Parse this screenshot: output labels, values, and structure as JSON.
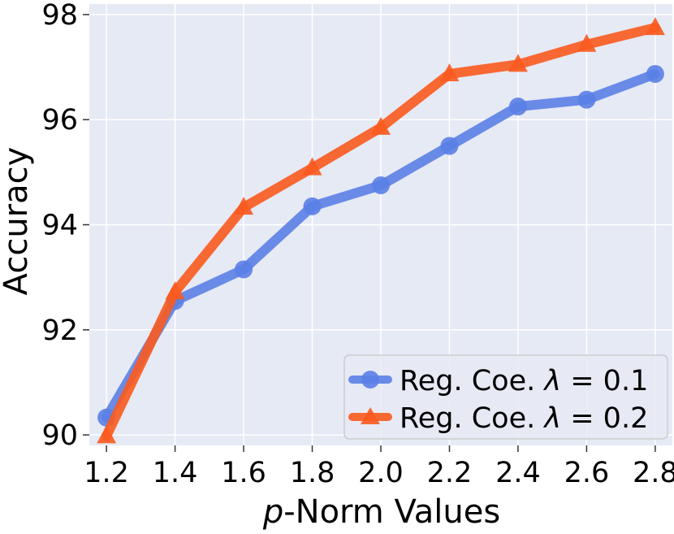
{
  "chart_data": {
    "type": "line",
    "title": "",
    "xlabel_prefix": "p",
    "xlabel_suffix": "-Norm Values",
    "ylabel": "Accuracy",
    "x": [
      1.2,
      1.4,
      1.6,
      1.8,
      2.0,
      2.2,
      2.4,
      2.6,
      2.8
    ],
    "x_tick_labels": [
      "1.2",
      "1.4",
      "1.6",
      "1.8",
      "2.0",
      "2.2",
      "2.4",
      "2.6",
      "2.8"
    ],
    "y_ticks": [
      90,
      92,
      94,
      96,
      98
    ],
    "y_tick_labels": [
      "90",
      "92",
      "94",
      "96",
      "98"
    ],
    "xlim": [
      1.15,
      2.85
    ],
    "ylim": [
      89.8,
      98.2
    ],
    "grid": true,
    "legend_position": "bottom-right",
    "series": [
      {
        "name": "Reg. Coe. λ = 0.1",
        "legend_prefix": "Reg. Coe. ",
        "legend_lambda": "λ",
        "legend_value": " = 0.1",
        "marker": "circle",
        "color": "#5b7fe6",
        "values": [
          90.33,
          92.55,
          93.15,
          94.35,
          94.75,
          95.5,
          96.25,
          96.38,
          96.87
        ]
      },
      {
        "name": "Reg. Coe. λ = 0.2",
        "legend_prefix": "Reg. Coe. ",
        "legend_lambda": "λ",
        "legend_value": " = 0.2",
        "marker": "triangle",
        "color": "#fa5a1e",
        "values": [
          89.98,
          92.72,
          94.33,
          95.08,
          95.85,
          96.87,
          97.05,
          97.43,
          97.75
        ]
      }
    ],
    "colors": {
      "plot_background": "#e6eaf5",
      "grid": "#ffffff"
    }
  }
}
